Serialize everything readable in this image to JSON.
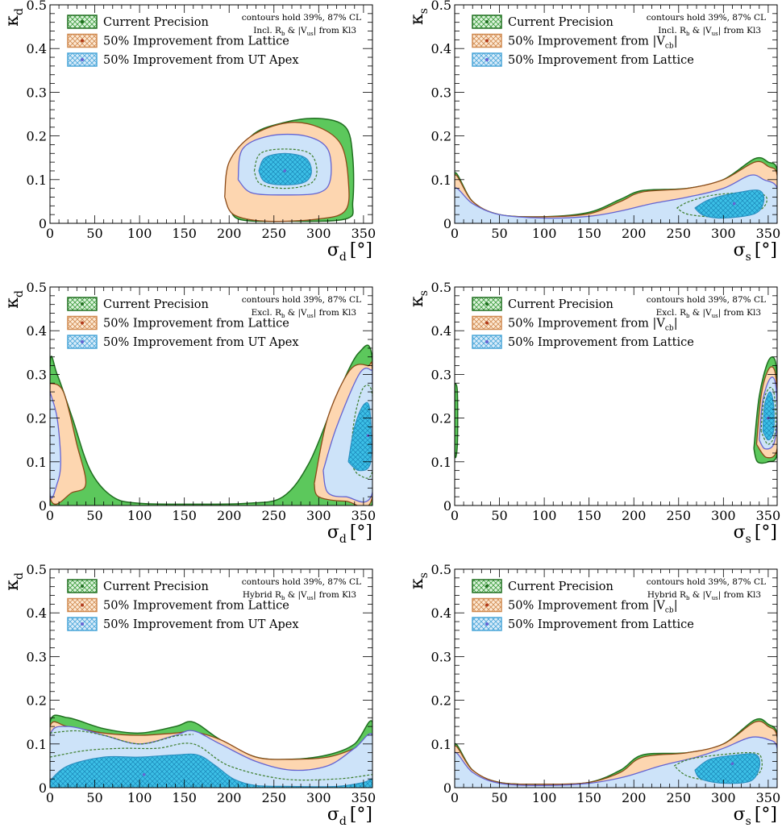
{
  "colors": {
    "current_fill": "#5cc85c",
    "current_edge": "#1f6e1f",
    "impr1_fill": "#fdd6b0",
    "impr1_edge": "#8b4a17",
    "impr2_fill": "#cde3f9",
    "impr2_edge": "#6464d2",
    "inner_fill": "#3cc0e6",
    "inner_edge": "#2a8fc0"
  },
  "chart_data": [
    {
      "id": "p1",
      "type": "area",
      "xlabel_main": "σ",
      "xlabel_sub": "d",
      "xlabel_unit": "[°]",
      "ylabel_main": "κ",
      "ylabel_sub": "d",
      "xlim": [
        0,
        360
      ],
      "ylim": [
        0,
        0.5
      ],
      "xticks": [
        "0",
        "50",
        "100",
        "150",
        "200",
        "250",
        "300",
        "350"
      ],
      "yticks": [
        "0",
        "0.1",
        "0.2",
        "0.3",
        "0.4",
        "0.5"
      ],
      "legend": [
        "Current Precision",
        "50% Improvement from Lattice",
        "50% Improvement from UT Apex"
      ],
      "note1": "contours hold 39%, 87% CL",
      "note2": "Incl. R_b & |V_us| from Kl3",
      "best_fit": [
        262,
        0.12
      ]
    },
    {
      "id": "p2",
      "type": "area",
      "xlabel_main": "σ",
      "xlabel_sub": "s",
      "xlabel_unit": "[°]",
      "ylabel_main": "κ",
      "ylabel_sub": "s",
      "xlim": [
        0,
        360
      ],
      "ylim": [
        0,
        0.5
      ],
      "xticks": [
        "0",
        "50",
        "100",
        "150",
        "200",
        "250",
        "300",
        "350"
      ],
      "yticks": [
        "0",
        "0.1",
        "0.2",
        "0.3",
        "0.4",
        "0.5"
      ],
      "legend": [
        "Current Precision",
        "50% Improvement from |V_cb|",
        "50% Improvement from Lattice"
      ],
      "note1": "contours hold 39%, 87% CL",
      "note2": "Incl. R_b & |V_us| from Kl3",
      "best_fit": [
        312,
        0.045
      ]
    },
    {
      "id": "p3",
      "type": "area",
      "xlabel_main": "σ",
      "xlabel_sub": "d",
      "xlabel_unit": "[°]",
      "ylabel_main": "κ",
      "ylabel_sub": "d",
      "xlim": [
        0,
        360
      ],
      "ylim": [
        0,
        0.5
      ],
      "xticks": [
        "0",
        "50",
        "100",
        "150",
        "200",
        "250",
        "300",
        "350"
      ],
      "yticks": [
        "0",
        "0.1",
        "0.2",
        "0.3",
        "0.4",
        "0.5"
      ],
      "legend": [
        "Current Precision",
        "50% Improvement from Lattice",
        "50% Improvement from UT Apex"
      ],
      "note1": "contours hold 39%, 87% CL",
      "note2": "Excl. R_b & |V_us| from Kl3",
      "best_fit": [
        355,
        0.16
      ]
    },
    {
      "id": "p4",
      "type": "area",
      "xlabel_main": "σ",
      "xlabel_sub": "s",
      "xlabel_unit": "[°]",
      "ylabel_main": "κ",
      "ylabel_sub": "s",
      "xlim": [
        0,
        360
      ],
      "ylim": [
        0,
        0.5
      ],
      "xticks": [
        "0",
        "50",
        "100",
        "150",
        "200",
        "250",
        "300",
        "350"
      ],
      "yticks": [
        "0",
        "0.1",
        "0.2",
        "0.3",
        "0.4",
        "0.5"
      ],
      "legend": [
        "Current Precision",
        "50% Improvement from |V_cb|",
        "50% Improvement from Lattice"
      ],
      "note1": "contours hold 39%, 87% CL",
      "note2": "Excl. R_b & |V_us| from Kl3",
      "best_fit": [
        350,
        0.2
      ]
    },
    {
      "id": "p5",
      "type": "area",
      "xlabel_main": "σ",
      "xlabel_sub": "d",
      "xlabel_unit": "[°]",
      "ylabel_main": "κ",
      "ylabel_sub": "d",
      "xlim": [
        0,
        360
      ],
      "ylim": [
        0,
        0.5
      ],
      "xticks": [
        "0",
        "50",
        "100",
        "150",
        "200",
        "250",
        "300",
        "350"
      ],
      "yticks": [
        "0",
        "0.1",
        "0.2",
        "0.3",
        "0.4",
        "0.5"
      ],
      "legend": [
        "Current Precision",
        "50% Improvement from Lattice",
        "50% Improvement from UT Apex"
      ],
      "note1": "contours hold 39%, 87% CL",
      "note2": "Hybrid R_b & |V_us| from Kl3",
      "best_fit": [
        105,
        0.03
      ]
    },
    {
      "id": "p6",
      "type": "area",
      "xlabel_main": "σ",
      "xlabel_sub": "s",
      "xlabel_unit": "[°]",
      "ylabel_main": "κ",
      "ylabel_sub": "s",
      "xlim": [
        0,
        360
      ],
      "ylim": [
        0,
        0.5
      ],
      "xticks": [
        "0",
        "50",
        "100",
        "150",
        "200",
        "250",
        "300",
        "350"
      ],
      "yticks": [
        "0",
        "0.1",
        "0.2",
        "0.3",
        "0.4",
        "0.5"
      ],
      "legend": [
        "Current Precision",
        "50% Improvement from |V_cb|",
        "50% Improvement from Lattice"
      ],
      "note1": "contours hold 39%, 87% CL",
      "note2": "Hybrid R_b & |V_us| from Kl3",
      "best_fit": [
        310,
        0.055
      ]
    }
  ]
}
